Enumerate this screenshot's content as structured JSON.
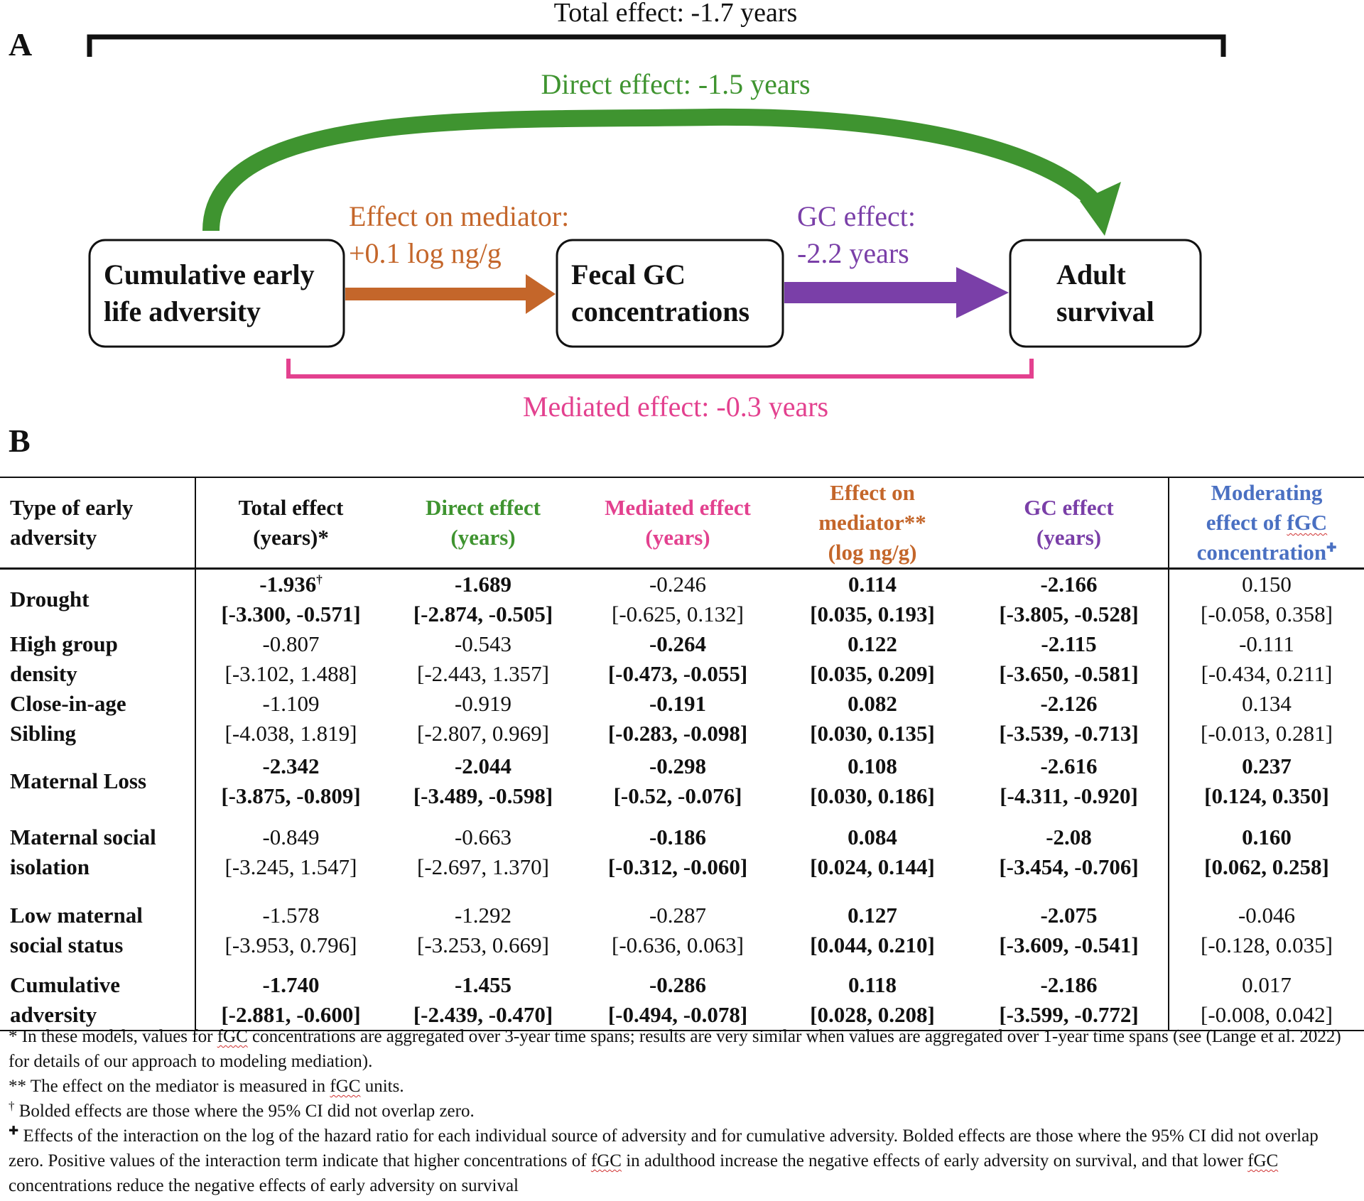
{
  "panelA": {
    "letter": "A",
    "total_effect": "Total effect: -1.7 years",
    "direct_effect": "Direct effect: -1.5 years",
    "mediator_label_1": "Effect on mediator:",
    "mediator_label_2": "+0.1 log ng/g",
    "gc_label_1": "GC effect:",
    "gc_label_2": "-2.2 years",
    "box1_line1": "Cumulative early",
    "box1_line2": "life adversity",
    "box2_line1": "Fecal GC",
    "box2_line2": "concentrations",
    "box3_line1": "Adult",
    "box3_line2": "survival",
    "mediated_effect": "Mediated effect: -0.3 years",
    "colors": {
      "direct": "#3f9430",
      "mediator": "#c4662a",
      "gc": "#7a3fa8",
      "mediated": "#e3418f",
      "moderating": "#4a70c2"
    }
  },
  "panelB": {
    "letter": "B",
    "headers": {
      "type_1": "Type of  early",
      "type_2": "adversity",
      "total_1": "Total effect",
      "total_2": "(years)*",
      "direct_1": "Direct effect",
      "direct_2": "(years)",
      "mediated_1": "Mediated effect",
      "mediated_2": "(years)",
      "mediator_1": "Effect on",
      "mediator_2": "mediator**",
      "mediator_3": "(log ng/g)",
      "gc_1": "GC effect",
      "gc_2": "(years)",
      "mod_1": "Moderating",
      "mod_2": "effect of ",
      "mod_fgc": "fGC",
      "mod_3": "concentration",
      "mod_sym": "✚"
    },
    "rows": [
      {
        "label1": "Drought",
        "label2": "",
        "cells": [
          {
            "v": "-1.936",
            "sup": "†",
            "ci": "[-3.300, -0.571]",
            "bold": true
          },
          {
            "v": "-1.689",
            "ci": "[-2.874, -0.505]",
            "bold": true
          },
          {
            "v": "-0.246",
            "ci": "[-0.625, 0.132]",
            "bold": false
          },
          {
            "v": "0.114",
            "ci": "[0.035, 0.193]",
            "bold": true
          },
          {
            "v": "-2.166",
            "ci": "[-3.805, -0.528]",
            "bold": true
          },
          {
            "v": "0.150",
            "ci": "[-0.058, 0.358]",
            "bold": false
          }
        ]
      },
      {
        "label1": "High group",
        "label2": "density",
        "cells": [
          {
            "v": "-0.807",
            "ci": "[-3.102, 1.488]",
            "bold": false
          },
          {
            "v": "-0.543",
            "ci": "[-2.443, 1.357]",
            "bold": false
          },
          {
            "v": "-0.264",
            "ci": "[-0.473, -0.055]",
            "bold": true
          },
          {
            "v": "0.122",
            "ci": "[0.035, 0.209]",
            "bold": true
          },
          {
            "v": "-2.115",
            "ci": "[-3.650, -0.581]",
            "bold": true
          },
          {
            "v": "-0.111",
            "ci": "[-0.434, 0.211]",
            "bold": false
          }
        ]
      },
      {
        "label1": "Close-in-age",
        "label2": "Sibling",
        "cells": [
          {
            "v": "-1.109",
            "ci": "[-4.038, 1.819]",
            "bold": false
          },
          {
            "v": "-0.919",
            "ci": "[-2.807, 0.969]",
            "bold": false
          },
          {
            "v": "-0.191",
            "ci": "[-0.283, -0.098]",
            "bold": true
          },
          {
            "v": "0.082",
            "ci": "[0.030, 0.135]",
            "bold": true
          },
          {
            "v": "-2.126",
            "ci": "[-3.539, -0.713]",
            "bold": true
          },
          {
            "v": "0.134",
            "ci": "[-0.013, 0.281]",
            "bold": false
          }
        ]
      },
      {
        "label1": "Maternal Loss",
        "label2": "",
        "cells": [
          {
            "v": "-2.342",
            "ci": "[-3.875, -0.809]",
            "bold": true
          },
          {
            "v": "-2.044",
            "ci": "[-3.489, -0.598]",
            "bold": true
          },
          {
            "v": "-0.298",
            "ci": "[-0.52, -0.076]",
            "bold": true
          },
          {
            "v": "0.108",
            "ci": "[0.030, 0.186]",
            "bold": true
          },
          {
            "v": "-2.616",
            "ci": "[-4.311, -0.920]",
            "bold": true
          },
          {
            "v": "0.237",
            "ci": "[0.124, 0.350]",
            "bold": true
          }
        ]
      },
      {
        "label1": "Maternal social",
        "label2": "isolation",
        "cells": [
          {
            "v": "-0.849",
            "ci": "[-3.245, 1.547]",
            "bold": false
          },
          {
            "v": "-0.663",
            "ci": "[-2.697, 1.370]",
            "bold": false
          },
          {
            "v": "-0.186",
            "ci": "[-0.312, -0.060]",
            "bold": true
          },
          {
            "v": "0.084",
            "ci": "[0.024, 0.144]",
            "bold": true
          },
          {
            "v": "-2.08",
            "ci": "[-3.454, -0.706]",
            "bold": true
          },
          {
            "v": "0.160",
            "ci": "[0.062, 0.258]",
            "bold": true
          }
        ]
      },
      {
        "label1": "Low maternal",
        "label2": "social status",
        "cells": [
          {
            "v": "-1.578",
            "ci": "[-3.953, 0.796]",
            "bold": false
          },
          {
            "v": "-1.292",
            "ci": "[-3.253, 0.669]",
            "bold": false
          },
          {
            "v": "-0.287",
            "ci": "[-0.636, 0.063]",
            "bold": false
          },
          {
            "v": "0.127",
            "ci": "[0.044, 0.210]",
            "bold": true
          },
          {
            "v": "-2.075",
            "ci": "[-3.609, -0.541]",
            "bold": true
          },
          {
            "v": "-0.046",
            "ci": "[-0.128, 0.035]",
            "bold": false
          }
        ]
      },
      {
        "label1": "Cumulative",
        "label2": "adversity",
        "cells": [
          {
            "v": "-1.740",
            "ci": "[-2.881, -0.600]",
            "bold": true
          },
          {
            "v": "-1.455",
            "ci": "[-2.439, -0.470]",
            "bold": true
          },
          {
            "v": "-0.286",
            "ci": "[-0.494, -0.078]",
            "bold": true
          },
          {
            "v": "0.118",
            "ci": "[0.028, 0.208]",
            "bold": true
          },
          {
            "v": "-2.186",
            "ci": "[-3.599, -0.772]",
            "bold": true
          },
          {
            "v": "0.017",
            "ci": "[-0.008, 0.042]",
            "bold": false
          }
        ]
      }
    ]
  },
  "notes": {
    "n1_a": "* In these models, values for ",
    "n1_fgc": "fGC",
    "n1_b": " concentrations are aggregated over 3-year time spans; results are very similar when values are aggregated over 1-year time spans (see (Lange et al. 2022) for details of our approach to modeling mediation).",
    "n2_a": "** The effect on the mediator is measured in ",
    "n2_fgc": "fGC",
    "n2_b": " units.",
    "n3_sym": "†",
    "n3_text": " Bolded effects are those where the 95% CI did not overlap zero.",
    "n4_sym": "✚",
    "n4_a": " Effects of the interaction on the log of the hazard ratio for each individual source of adversity and for cumulative adversity. Bolded effects are those where the 95% CI did not overlap zero. Positive values of the interaction term indicate that higher concentrations of ",
    "n4_fgc1": "fGC",
    "n4_b": " in adulthood increase the negative effects of early adversity on survival, and that lower ",
    "n4_fgc2": "fGC",
    "n4_c": " concentrations reduce the negative effects of early adversity on survival"
  }
}
